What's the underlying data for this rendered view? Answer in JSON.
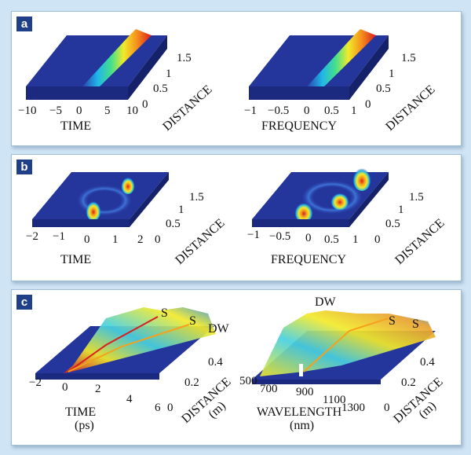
{
  "colors": {
    "background": "#cfe4f4",
    "panel": "#ffffff",
    "badge": "#1f3f88",
    "surface_low": "#23339c",
    "surface_high": "#d81e1e"
  },
  "panels": [
    {
      "label": "a",
      "plots": [
        {
          "name": "time-evolution",
          "x_ticks": [
            "−10",
            "−5",
            "0",
            "5",
            "10"
          ],
          "x_label": "TIME",
          "y_ticks": [
            "0",
            "0.5",
            "1",
            "1.5"
          ],
          "y_label": "DISTANCE"
        },
        {
          "name": "frequency-evolution",
          "x_ticks": [
            "−1",
            "−0.5",
            "0",
            "0.5",
            "1"
          ],
          "x_label": "FREQUENCY",
          "y_ticks": [
            "0",
            "0.5",
            "1",
            "1.5"
          ],
          "y_label": "DISTANCE"
        }
      ]
    },
    {
      "label": "b",
      "plots": [
        {
          "name": "time-evolution",
          "x_ticks": [
            "−2",
            "−1",
            "0",
            "1",
            "2"
          ],
          "x_label": "TIME",
          "y_ticks": [
            "0",
            "0.5",
            "1",
            "1.5"
          ],
          "y_label": "DISTANCE"
        },
        {
          "name": "frequency-evolution",
          "x_ticks": [
            "−1",
            "−0.5",
            "0",
            "0.5",
            "1"
          ],
          "x_label": "FREQUENCY",
          "y_ticks": [
            "0",
            "0.5",
            "1",
            "1.5"
          ],
          "y_label": "DISTANCE"
        }
      ]
    },
    {
      "label": "c",
      "plots": [
        {
          "name": "time-evolution",
          "x_ticks": [
            "−2",
            "0",
            "2",
            "4",
            "6"
          ],
          "x_label": "TIME",
          "x_unit": "(ps)",
          "y_ticks": [
            "0",
            "0.2",
            "0.4"
          ],
          "y_label": "DISTANCE",
          "y_unit": "(m)",
          "annotations": [
            "S",
            "S",
            "DW"
          ]
        },
        {
          "name": "wavelength-evolution",
          "x_ticks": [
            "500",
            "700",
            "900",
            "1100",
            "1300"
          ],
          "x_label": "WAVELENGTH",
          "x_unit": "(nm)",
          "y_ticks": [
            "0",
            "0.2",
            "0.4"
          ],
          "y_label": "DISTANCE",
          "y_unit": "(m)",
          "annotations": [
            "DW",
            "S",
            "S"
          ]
        }
      ]
    }
  ]
}
